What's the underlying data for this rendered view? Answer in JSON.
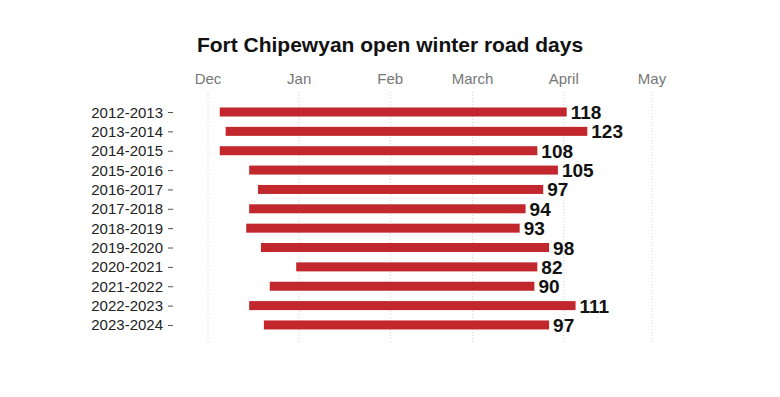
{
  "chart_data": {
    "type": "bar",
    "title": "Fort Chipewyan open winter road days",
    "orientation": "horizontal",
    "categories": [
      "2012-2013",
      "2013-2014",
      "2014-2015",
      "2015-2016",
      "2016-2017",
      "2017-2018",
      "2018-2019",
      "2019-2020",
      "2020-2021",
      "2021-2022",
      "2022-2023",
      "2023-2024"
    ],
    "start": [
      4,
      6,
      4,
      14,
      17,
      14,
      13,
      18,
      30,
      21,
      14,
      19
    ],
    "values": [
      118,
      123,
      108,
      105,
      97,
      94,
      93,
      98,
      82,
      90,
      111,
      97
    ],
    "color": "#c1272d",
    "xlim": [
      0,
      151
    ],
    "xticks": [
      {
        "value": 0,
        "label": "Dec"
      },
      {
        "value": 31,
        "label": "Jan"
      },
      {
        "value": 62,
        "label": "Feb"
      },
      {
        "value": 90,
        "label": "March"
      },
      {
        "value": 121,
        "label": "April"
      },
      {
        "value": 151,
        "label": "May"
      }
    ],
    "grid": true,
    "data_labels": true
  }
}
